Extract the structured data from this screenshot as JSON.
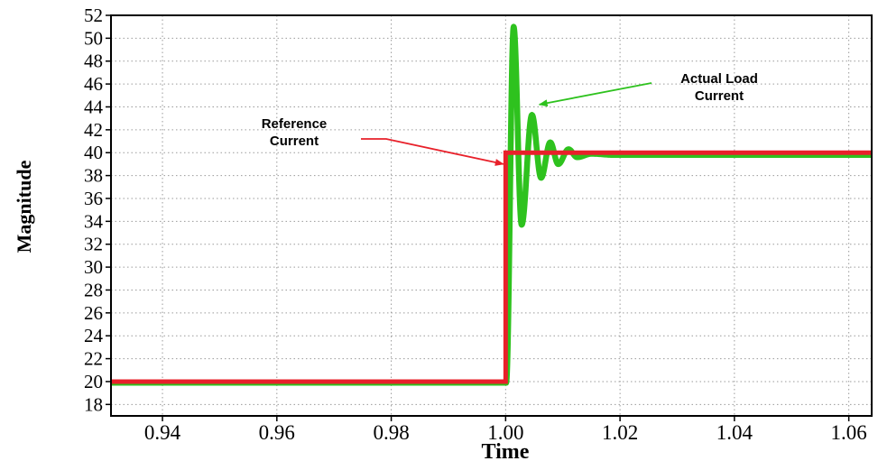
{
  "chart_data": {
    "type": "line",
    "title": "",
    "xlabel": "Time",
    "ylabel": "Magnitude",
    "xlim": [
      0.931,
      1.064
    ],
    "ylim": [
      17,
      52
    ],
    "x_ticks": [
      "0.94",
      "0.96",
      "0.98",
      "1.00",
      "1.02",
      "1.04",
      "1.06"
    ],
    "y_ticks": [
      "18",
      "20",
      "22",
      "24",
      "26",
      "28",
      "30",
      "32",
      "34",
      "36",
      "38",
      "40",
      "42",
      "44",
      "46",
      "48",
      "50",
      "52"
    ],
    "grid": true,
    "series": [
      {
        "name": "Reference Current",
        "color": "#e8202a",
        "points": [
          [
            0.931,
            20
          ],
          [
            1.0,
            20
          ],
          [
            1.0,
            40
          ],
          [
            1.064,
            40
          ]
        ]
      },
      {
        "name": "Actual Load Current",
        "color": "#2ec21e",
        "step_time": 1.0,
        "initial": 19.9,
        "final": 39.8,
        "peaks": [
          [
            1.0014,
            51.0
          ],
          [
            1.0028,
            33.7
          ],
          [
            1.0046,
            43.3
          ],
          [
            1.0062,
            37.8
          ],
          [
            1.0078,
            40.9
          ],
          [
            1.0092,
            39.0
          ],
          [
            1.011,
            40.3
          ],
          [
            1.0125,
            39.6
          ],
          [
            1.015,
            39.9
          ]
        ]
      }
    ],
    "annotations": [
      {
        "lines": [
          "Reference",
          "Current"
        ],
        "arrow_to": [
          0.9996,
          39.0
        ],
        "arrow_color": "#e8202a"
      },
      {
        "lines": [
          "Actual Load",
          "Current"
        ],
        "arrow_to": [
          1.0059,
          44.2
        ],
        "arrow_color": "#2ec21e"
      }
    ]
  }
}
